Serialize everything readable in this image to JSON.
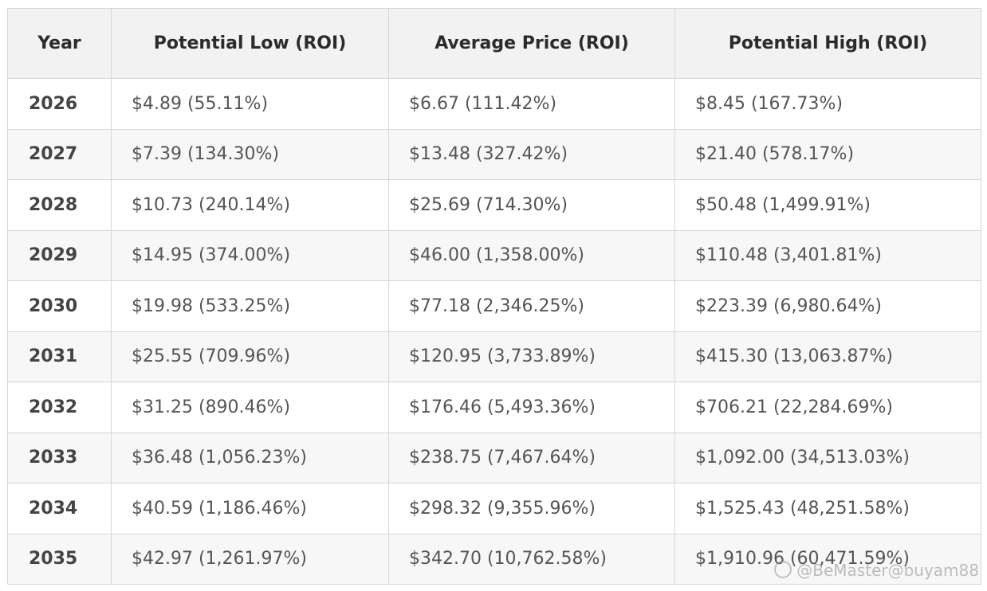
{
  "table": {
    "headers": [
      "Year",
      "Potential Low (ROI)",
      "Average Price (ROI)",
      "Potential High (ROI)"
    ],
    "rows": [
      {
        "year": "2026",
        "low": "$4.89 (55.11%)",
        "avg": "$6.67 (111.42%)",
        "high": "$8.45 (167.73%)"
      },
      {
        "year": "2027",
        "low": "$7.39 (134.30%)",
        "avg": "$13.48 (327.42%)",
        "high": "$21.40 (578.17%)"
      },
      {
        "year": "2028",
        "low": "$10.73 (240.14%)",
        "avg": "$25.69 (714.30%)",
        "high": "$50.48 (1,499.91%)"
      },
      {
        "year": "2029",
        "low": "$14.95 (374.00%)",
        "avg": "$46.00 (1,358.00%)",
        "high": "$110.48 (3,401.81%)"
      },
      {
        "year": "2030",
        "low": "$19.98 (533.25%)",
        "avg": "$77.18 (2,346.25%)",
        "high": "$223.39 (6,980.64%)"
      },
      {
        "year": "2031",
        "low": "$25.55 (709.96%)",
        "avg": "$120.95 (3,733.89%)",
        "high": "$415.30 (13,063.87%)"
      },
      {
        "year": "2032",
        "low": "$31.25 (890.46%)",
        "avg": "$176.46 (5,493.36%)",
        "high": "$706.21 (22,284.69%)"
      },
      {
        "year": "2033",
        "low": "$36.48 (1,056.23%)",
        "avg": "$238.75 (7,467.64%)",
        "high": "$1,092.00 (34,513.03%)"
      },
      {
        "year": "2034",
        "low": "$40.59 (1,186.46%)",
        "avg": "$298.32 (9,355.96%)",
        "high": "$1,525.43 (48,251.58%)"
      },
      {
        "year": "2035",
        "low": "$42.97 (1,261.97%)",
        "avg": "$342.70 (10,762.58%)",
        "high": "$1,910.96 (60,471.59%)"
      }
    ]
  },
  "watermark": {
    "text": "@BeMaster@buyam88",
    "icon": "weibo-icon"
  },
  "colors": {
    "header_bg": "#f2f2f2",
    "stripe_bg": "#f7f7f7",
    "border": "#d6d6d6"
  }
}
